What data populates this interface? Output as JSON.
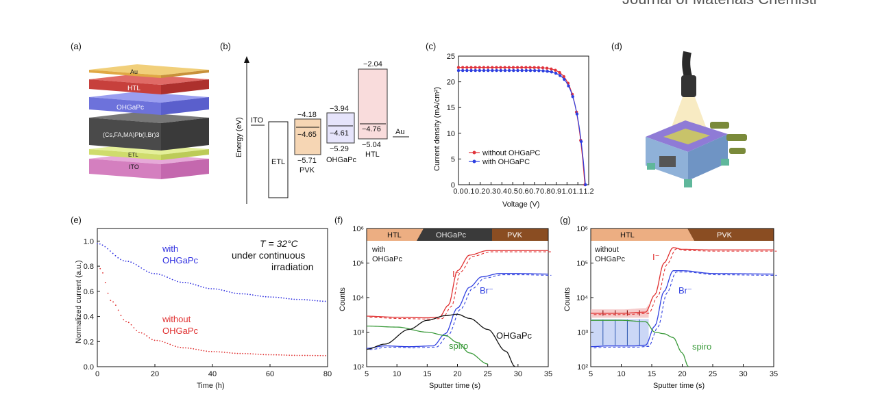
{
  "journal": "Journal of Materials Chemistr",
  "panels": {
    "a": {
      "label": "(a)",
      "layers": [
        "Au",
        "HTL",
        "OHGaPc",
        "(Cs,FA,MA)Pb(I,Br)3",
        "ETL",
        "ITO"
      ],
      "colors": [
        "#e7b24d",
        "#c7403c",
        "#7276d9",
        "#555555",
        "#d7e47b",
        "#d47fbf"
      ]
    },
    "b": {
      "label": "(b)",
      "ylabel": "Energy (eV)",
      "items": {
        "ito": "ITO",
        "etl": "ETL",
        "pvk": "PVK",
        "ohgapc": "OHGaPc",
        "htl": "HTL",
        "au": "Au"
      },
      "levels": {
        "pvk": {
          "lumo": -4.18,
          "homo": -5.71,
          "mid": -4.65
        },
        "ohgapc": {
          "lumo": -3.94,
          "homo": -5.29,
          "mid": -4.61
        },
        "htl": {
          "lumo": -2.04,
          "homo": -5.04,
          "mid": -4.76
        }
      },
      "level_labels": {
        "pvk_lumo": "−4.18",
        "pvk_mid": "−4.65",
        "pvk_homo": "−5.71",
        "ohg_lumo": "−3.94",
        "ohg_mid": "−4.61",
        "ohg_homo": "−5.29",
        "htl_lumo": "−2.04",
        "htl_mid": "−4.76",
        "htl_homo": "−5.04"
      }
    },
    "c": {
      "label": "(c)",
      "ylabel": "Current density (mA/cm²)",
      "xlabel": "Voltage (V)"
    },
    "d": {
      "label": "(d)"
    },
    "e": {
      "label": "(e)",
      "ylabel": "Normalized current (a.u.)",
      "xlabel": "Time (h)",
      "annot_temp": "T = 32°C",
      "annot_line2": "under continuous",
      "annot_line3": "irradiation",
      "with_l1": "with",
      "with_l2": "OHGaPc",
      "without_l1": "without",
      "without_l2": "OHGaPc"
    },
    "f": {
      "label": "(f)",
      "ylabel": "Counts",
      "xlabel": "Sputter time (s)",
      "band": [
        "HTL",
        "OHGaPc",
        "PVK"
      ],
      "tag_l1": "with",
      "tag_l2": "OHGaPc",
      "labels": {
        "i": "I⁻",
        "br": "Br⁻",
        "spiro": "spiro",
        "ohgapc": "OHGaPc"
      }
    },
    "g": {
      "label": "(g)",
      "ylabel": "Counts",
      "xlabel": "Sputter time (s)",
      "band": [
        "HTL",
        "PVK"
      ],
      "tag_l1": "without",
      "tag_l2": "OHGaPc",
      "labels": {
        "i": "I⁻",
        "br": "Br⁻",
        "spiro": "spiro"
      }
    }
  },
  "chart_data": [
    {
      "id": "c",
      "type": "line",
      "xlim": [
        0,
        1.2
      ],
      "ylim": [
        0,
        25
      ],
      "x_ticks": [
        0.0,
        0.1,
        0.2,
        0.3,
        0.4,
        0.5,
        0.6,
        0.7,
        0.8,
        0.9,
        1.0,
        1.1,
        1.2
      ],
      "y_ticks": [
        0,
        5,
        10,
        15,
        20,
        25
      ],
      "legend": "center-right",
      "series": [
        {
          "name": "without OHGaPC",
          "color": "#e0343c",
          "jsc": 22.8,
          "voc": 1.165
        },
        {
          "name": "with OHGaPC",
          "color": "#2d3fe0",
          "jsc": 22.2,
          "voc": 1.17
        }
      ]
    },
    {
      "id": "e",
      "type": "scatter",
      "xlim": [
        0,
        80
      ],
      "ylim": [
        0.0,
        1.1
      ],
      "x_ticks": [
        0,
        20,
        40,
        60,
        80
      ],
      "y_ticks": [
        0.0,
        0.2,
        0.4,
        0.6,
        0.8,
        1.0
      ],
      "series": [
        {
          "name": "with OHGaPc",
          "color": "#3030e0",
          "x": [
            0,
            10,
            20,
            30,
            40,
            50,
            60,
            70,
            80
          ],
          "y": [
            0.98,
            0.84,
            0.74,
            0.67,
            0.62,
            0.58,
            0.555,
            0.535,
            0.52
          ]
        },
        {
          "name": "without OHGaPc",
          "color": "#e03030",
          "x": [
            1,
            5,
            10,
            15,
            20,
            30,
            40,
            50,
            60,
            70,
            80
          ],
          "y": [
            0.78,
            0.52,
            0.36,
            0.27,
            0.21,
            0.15,
            0.12,
            0.105,
            0.095,
            0.09,
            0.088
          ]
        }
      ]
    },
    {
      "id": "f",
      "type": "line",
      "xlim": [
        5,
        35
      ],
      "ylim": [
        100,
        1000000
      ],
      "yscale": "log",
      "x_ticks": [
        5,
        10,
        15,
        20,
        25,
        30,
        35
      ],
      "y_ticks": [
        "10²",
        "10³",
        "10⁴",
        "10⁵",
        "10⁶"
      ],
      "series": [
        {
          "name": "I⁻",
          "color": "#e03030",
          "x": [
            5,
            10,
            15,
            17,
            18.5,
            20,
            22,
            25,
            30,
            35
          ],
          "y": [
            2900,
            2700,
            2600,
            2700,
            6000,
            60000,
            170000,
            230000,
            230000,
            230000
          ]
        },
        {
          "name": "Br⁻",
          "color": "#3040e0",
          "x": [
            5,
            8,
            12,
            16,
            18,
            20,
            22,
            24,
            27,
            30,
            35
          ],
          "y": [
            340,
            400,
            380,
            400,
            900,
            5000,
            20000,
            40000,
            50000,
            50000,
            48000
          ]
        },
        {
          "name": "spiro",
          "color": "#3a9a3a",
          "x": [
            5,
            10,
            15,
            18,
            20,
            22,
            25
          ],
          "y": [
            1500,
            1400,
            1000,
            800,
            500,
            250,
            120
          ]
        },
        {
          "name": "OHGaPc",
          "color": "#111111",
          "x": [
            5,
            8,
            12,
            15,
            18,
            20,
            22,
            25,
            28,
            29.5
          ],
          "y": [
            320,
            450,
            1200,
            2200,
            3000,
            3300,
            2500,
            1200,
            280,
            100
          ]
        }
      ]
    },
    {
      "id": "g",
      "type": "line",
      "xlim": [
        5,
        35
      ],
      "ylim": [
        100,
        1000000
      ],
      "yscale": "log",
      "x_ticks": [
        5,
        10,
        15,
        20,
        25,
        30,
        35
      ],
      "y_ticks": [
        "10²",
        "10³",
        "10⁴",
        "10⁵",
        "10⁶"
      ],
      "series": [
        {
          "name": "I⁻",
          "color": "#e03030",
          "x": [
            5,
            10,
            14,
            15.5,
            17,
            18.5,
            20,
            25,
            35
          ],
          "y": [
            3500,
            3500,
            3800,
            12000,
            100000,
            280000,
            250000,
            240000,
            240000
          ]
        },
        {
          "name": "Br⁻",
          "color": "#3040e0",
          "x": [
            5,
            8,
            12,
            14,
            15.5,
            17,
            18.5,
            20,
            25,
            35
          ],
          "y": [
            380,
            400,
            400,
            420,
            1500,
            15000,
            60000,
            60000,
            50000,
            48000
          ]
        },
        {
          "name": "spiro",
          "color": "#3a9a3a",
          "x": [
            5,
            10,
            14,
            15.5,
            17,
            18.5,
            20,
            21
          ],
          "y": [
            2200,
            2200,
            2000,
            1000,
            900,
            700,
            250,
            100
          ]
        }
      ]
    }
  ]
}
